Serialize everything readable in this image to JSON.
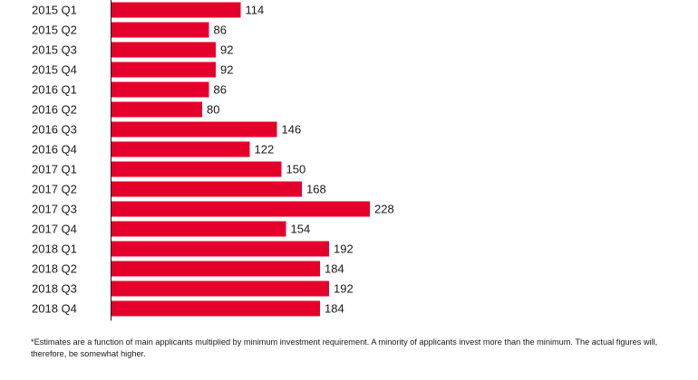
{
  "chart_data": {
    "type": "bar",
    "orientation": "horizontal",
    "title": "",
    "xlabel": "",
    "ylabel": "",
    "categories": [
      "2015 Q1",
      "2015 Q2",
      "2015 Q3",
      "2015 Q4",
      "2016 Q1",
      "2016 Q2",
      "2016 Q3",
      "2016 Q4",
      "2017 Q1",
      "2017 Q2",
      "2017 Q3",
      "2017 Q4",
      "2018 Q1",
      "2018 Q2",
      "2018 Q3",
      "2018 Q4"
    ],
    "values": [
      114,
      86,
      92,
      92,
      86,
      80,
      146,
      122,
      150,
      168,
      228,
      154,
      192,
      184,
      192,
      184
    ],
    "xlim": [
      0,
      228
    ],
    "grid": false,
    "bar_color": "#e4002b"
  },
  "footnote": "*Estimates are a function of main applicants multiplied by minimum investment requirement. A minority of applicants invest more than the minimum. The actual figures will, therefore, be somewhat higher.",
  "colors": {
    "bar": "#e4002b",
    "axis": "#1a1a1a",
    "text": "#1a1a1a"
  }
}
